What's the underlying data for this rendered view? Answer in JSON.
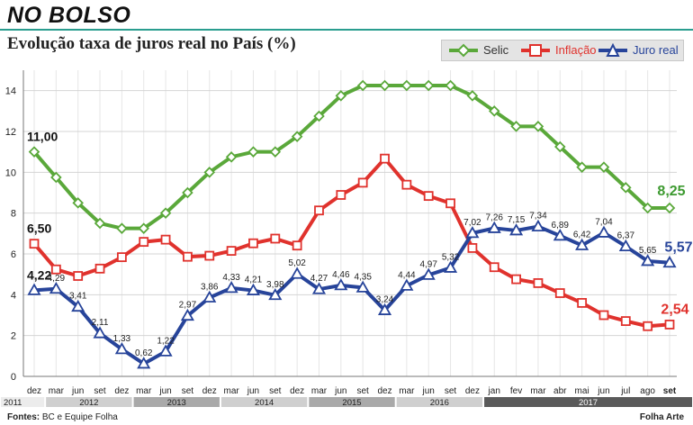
{
  "header": {
    "kicker": "NO BOLSO",
    "title": "Evolução taxa de juros real no País (%)"
  },
  "legend": [
    {
      "label": "Selic",
      "color": "#5aa83a",
      "marker": "diamond"
    },
    {
      "label": "Inflação",
      "color": "#e0322d",
      "marker": "square"
    },
    {
      "label": "Juro real",
      "color": "#27449a",
      "marker": "triangle"
    }
  ],
  "footer": {
    "sources_label": "Fontes:",
    "sources_text": "BC e Equipe Folha",
    "credit": "Folha Arte"
  },
  "chart_data": {
    "type": "line",
    "ylim": [
      0,
      15
    ],
    "yticks": [
      0,
      2,
      4,
      6,
      8,
      10,
      12,
      14
    ],
    "grid": true,
    "legend_position": "top-right",
    "x": [
      "dez",
      "mar",
      "jun",
      "set",
      "dez",
      "mar",
      "jun",
      "set",
      "dez",
      "mar",
      "jun",
      "set",
      "dez",
      "mar",
      "jun",
      "set",
      "dez",
      "mar",
      "jun",
      "set",
      "dez",
      "jan",
      "fev",
      "mar",
      "abr",
      "mai",
      "jun",
      "jul",
      "ago",
      "set"
    ],
    "years": [
      {
        "label": "2011",
        "start": 0,
        "end": 0
      },
      {
        "label": "2012",
        "start": 1,
        "end": 4
      },
      {
        "label": "2013",
        "start": 5,
        "end": 8
      },
      {
        "label": "2014",
        "start": 9,
        "end": 12
      },
      {
        "label": "2015",
        "start": 13,
        "end": 16
      },
      {
        "label": "2016",
        "start": 17,
        "end": 20
      },
      {
        "label": "2017",
        "start": 21,
        "end": 29
      }
    ],
    "series": [
      {
        "name": "Selic",
        "color": "#5aa83a",
        "marker": "diamond",
        "values": [
          11.0,
          9.75,
          8.5,
          7.5,
          7.25,
          7.25,
          8.0,
          9.0,
          10.0,
          10.75,
          11.0,
          11.0,
          11.75,
          12.75,
          13.75,
          14.25,
          14.25,
          14.25,
          14.25,
          14.25,
          13.75,
          13.0,
          12.25,
          12.25,
          11.25,
          10.25,
          10.25,
          9.25,
          8.25,
          8.25
        ],
        "labels": [
          {
            "index": 0,
            "text": "11,00"
          },
          {
            "index": 29,
            "text": "8,25"
          }
        ]
      },
      {
        "name": "Inflação",
        "color": "#e0322d",
        "marker": "square",
        "values": [
          6.5,
          5.24,
          4.92,
          5.28,
          5.84,
          6.59,
          6.7,
          5.86,
          5.91,
          6.15,
          6.52,
          6.75,
          6.41,
          8.13,
          8.89,
          9.49,
          10.67,
          9.39,
          8.84,
          8.48,
          6.29,
          5.35,
          4.76,
          4.57,
          4.08,
          3.6,
          3.0,
          2.71,
          2.46,
          2.54
        ],
        "labels": [
          {
            "index": 0,
            "text": "6,50"
          },
          {
            "index": 29,
            "text": "2,54"
          }
        ]
      },
      {
        "name": "Juro real",
        "color": "#27449a",
        "marker": "triangle",
        "values": [
          4.22,
          4.29,
          3.41,
          2.11,
          1.33,
          0.62,
          1.22,
          2.97,
          3.86,
          4.33,
          4.21,
          3.98,
          5.02,
          4.27,
          4.46,
          4.35,
          3.24,
          4.44,
          4.97,
          5.32,
          7.02,
          7.26,
          7.15,
          7.34,
          6.89,
          6.42,
          7.04,
          6.37,
          5.65,
          5.57
        ],
        "labels": [
          {
            "index": 0,
            "text": "4,22"
          },
          {
            "index": 1,
            "text": "4,29"
          },
          {
            "index": 2,
            "text": "3,41"
          },
          {
            "index": 3,
            "text": "2,11"
          },
          {
            "index": 4,
            "text": "1,33"
          },
          {
            "index": 5,
            "text": "0,62"
          },
          {
            "index": 6,
            "text": "1,22"
          },
          {
            "index": 7,
            "text": "2,97"
          },
          {
            "index": 8,
            "text": "3,86"
          },
          {
            "index": 9,
            "text": "4,33"
          },
          {
            "index": 10,
            "text": "4,21"
          },
          {
            "index": 11,
            "text": "3,98"
          },
          {
            "index": 12,
            "text": "5,02"
          },
          {
            "index": 13,
            "text": "4,27"
          },
          {
            "index": 14,
            "text": "4,46"
          },
          {
            "index": 15,
            "text": "4,35"
          },
          {
            "index": 16,
            "text": "3,24"
          },
          {
            "index": 17,
            "text": "4,44"
          },
          {
            "index": 18,
            "text": "4,97"
          },
          {
            "index": 19,
            "text": "5,32"
          },
          {
            "index": 20,
            "text": "7,02"
          },
          {
            "index": 21,
            "text": "7,26"
          },
          {
            "index": 22,
            "text": "7,15"
          },
          {
            "index": 23,
            "text": "7,34"
          },
          {
            "index": 24,
            "text": "6,89"
          },
          {
            "index": 25,
            "text": "6,42"
          },
          {
            "index": 26,
            "text": "7,04"
          },
          {
            "index": 27,
            "text": "6,37"
          },
          {
            "index": 28,
            "text": "5,65"
          },
          {
            "index": 29,
            "text": "5,57"
          }
        ]
      }
    ]
  }
}
